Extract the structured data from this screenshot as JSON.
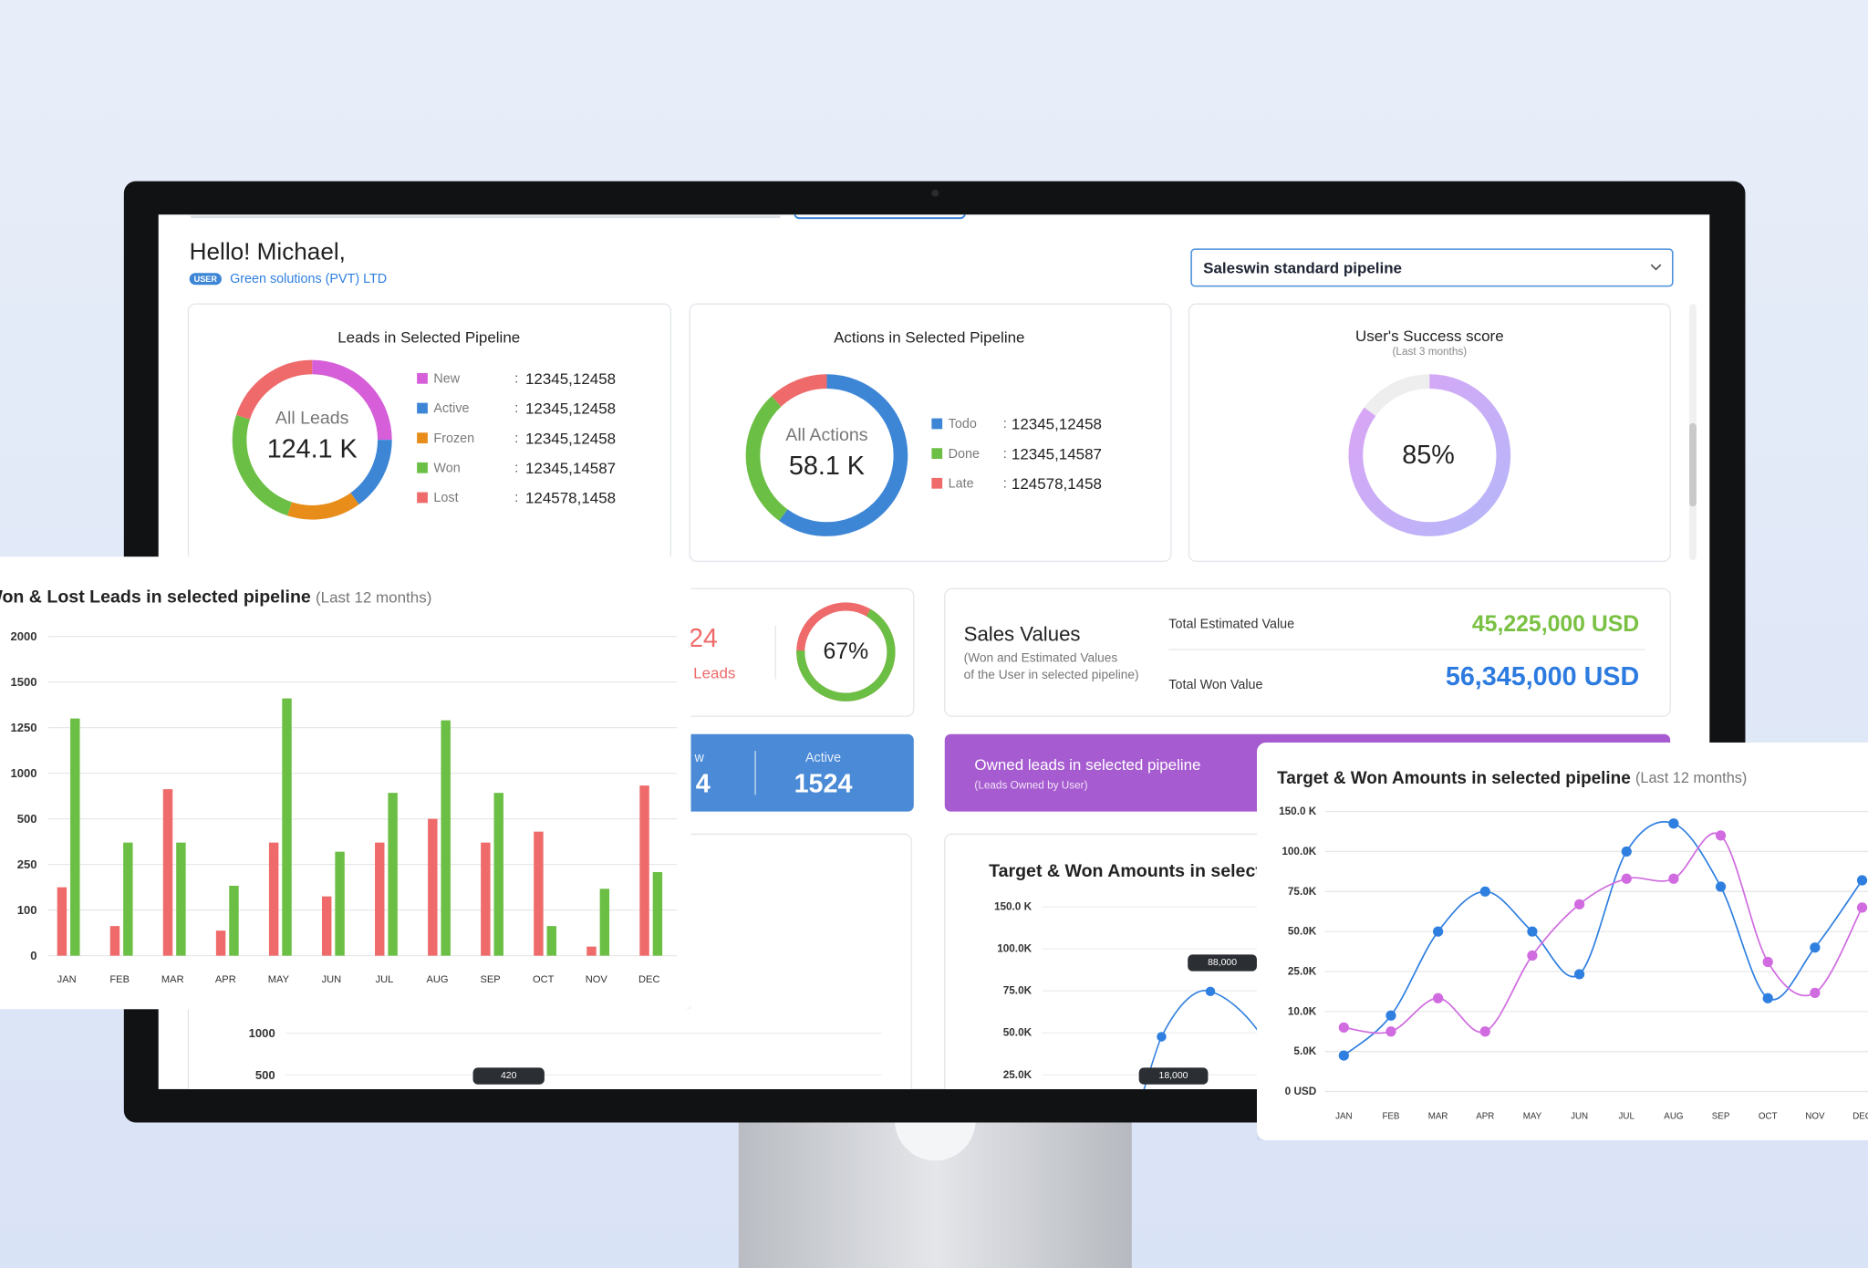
{
  "header": {
    "greeting": "Hello! Michael,",
    "badge": "USER",
    "company": "Green solutions (PVT) LTD",
    "pipeline": "Saleswin standard pipeline"
  },
  "leads_card": {
    "title": "Leads in Selected Pipeline",
    "center_label": "All Leads",
    "center_value": "124.1 K",
    "separator": ":",
    "items": [
      {
        "name": "New",
        "color": "#d65fd9",
        "count": "12345,12458",
        "share": 25
      },
      {
        "name": "Active",
        "color": "#3d86d6",
        "count": "12345,12458",
        "share": 15
      },
      {
        "name": "Frozen",
        "color": "#e88d1a",
        "count": "12345,12458",
        "share": 15
      },
      {
        "name": "Won",
        "color": "#6cbf45",
        "count": "12345,14587",
        "share": 25
      },
      {
        "name": "Lost",
        "color": "#ef6a6a",
        "count": "124578,1458",
        "share": 20
      }
    ]
  },
  "actions_card": {
    "title": "Actions in Selected Pipeline",
    "center_label": "All Actions",
    "center_value": "58.1 K",
    "separator": ":",
    "items": [
      {
        "name": "Todo",
        "color": "#3d86d6",
        "count": "12345,12458",
        "share": 60
      },
      {
        "name": "Done",
        "color": "#6cbf45",
        "count": "12345,14587",
        "share": 28
      },
      {
        "name": "Late",
        "color": "#ef6a6a",
        "count": "124578,1458",
        "share": 12
      }
    ]
  },
  "success_card": {
    "title": "User's Success score",
    "subtitle": "(Last 3 months)",
    "value": 85,
    "value_label": "85%",
    "color_start": "#dca4f4",
    "color_end": "#b6b7fa",
    "track_color": "#eeeeee"
  },
  "win_card": {
    "value_fragment": "24",
    "label_fragment": "Leads",
    "rate": 67,
    "rate_label": "67%",
    "rate_color": "#6cbf45",
    "rest_color": "#ef6a6a"
  },
  "sales_card": {
    "title": "Sales Values",
    "subtitle_lines": [
      "(Won and Estimated Values",
      "of the User in selected pipeline)"
    ],
    "estimated_label": "Total Estimated Value",
    "estimated_value": "45,225,000 USD",
    "won_label": "Total Won Value",
    "won_value": "56,345,000 USD"
  },
  "status_card": {
    "fragment_label": "w",
    "fragment_value": "4",
    "label": "Active",
    "value": "1524"
  },
  "owned_card": {
    "title": "Owned leads in selected pipeline",
    "subtitle": "(Leads Owned by User)"
  },
  "background_bar_chart": {
    "yticks": [
      1000,
      500
    ],
    "tooltip": "420"
  },
  "background_line_chart": {
    "title": "Target & Won Amounts in selected pipeline",
    "yticks": [
      {
        "value": 150000,
        "label": "150.0 K"
      },
      {
        "value": 100000,
        "label": "100.0K"
      },
      {
        "value": 75000,
        "label": "75.0K"
      },
      {
        "value": 50000,
        "label": "50.0K"
      },
      {
        "value": 25000,
        "label": "25.0K"
      }
    ],
    "tooltips": [
      "88,000",
      "18,000"
    ]
  },
  "chart_data": [
    {
      "type": "bar",
      "title": "Won & Lost Leads in selected pipeline",
      "subtitle": "(Last 12 months)",
      "categories": [
        "JAN",
        "FEB",
        "MAR",
        "APR",
        "MAY",
        "JUN",
        "JUL",
        "AUG",
        "SEP",
        "OCT",
        "NOV",
        "DEC"
      ],
      "series": [
        {
          "color": "#ef6a6a",
          "values": [
            175,
            65,
            825,
            55,
            370,
            145,
            370,
            500,
            370,
            430,
            20,
            865
          ]
        },
        {
          "color": "#6cbf45",
          "values": [
            1300,
            370,
            370,
            180,
            1410,
            320,
            785,
            1290,
            785,
            65,
            170,
            225
          ]
        }
      ],
      "ylim": [
        0,
        2000
      ],
      "yticks": [
        2000,
        1500,
        1250,
        1000,
        500,
        250,
        100,
        0
      ],
      "grid": true
    },
    {
      "type": "line",
      "title": "Target & Won Amounts in selected pipeline",
      "subtitle": "(Last 12 months)",
      "categories": [
        "JAN",
        "FEB",
        "MAR",
        "APR",
        "MAY",
        "JUN",
        "JUL",
        "AUG",
        "SEP",
        "OCT",
        "NOV",
        "DEC"
      ],
      "series": [
        {
          "color": "#2f7fe0",
          "values": [
            4500,
            9500,
            50000,
            75000,
            50000,
            24000,
            100000,
            135000,
            78000,
            15000,
            40000,
            82000
          ]
        },
        {
          "color": "#d06be0",
          "values": [
            8000,
            7500,
            15000,
            7500,
            35000,
            67000,
            83000,
            83000,
            120000,
            31000,
            17000,
            65000
          ]
        }
      ],
      "ylim": [
        0,
        150000
      ],
      "yticks": [
        {
          "value": 150000,
          "label": "150.0 K"
        },
        {
          "value": 100000,
          "label": "100.0K"
        },
        {
          "value": 75000,
          "label": "75.0K"
        },
        {
          "value": 50000,
          "label": "50.0K"
        },
        {
          "value": 25000,
          "label": "25.0K"
        },
        {
          "value": 10000,
          "label": "10.0K"
        },
        {
          "value": 5000,
          "label": "5.0K"
        },
        {
          "value": 0,
          "label": "0 USD"
        }
      ],
      "grid": true
    }
  ]
}
